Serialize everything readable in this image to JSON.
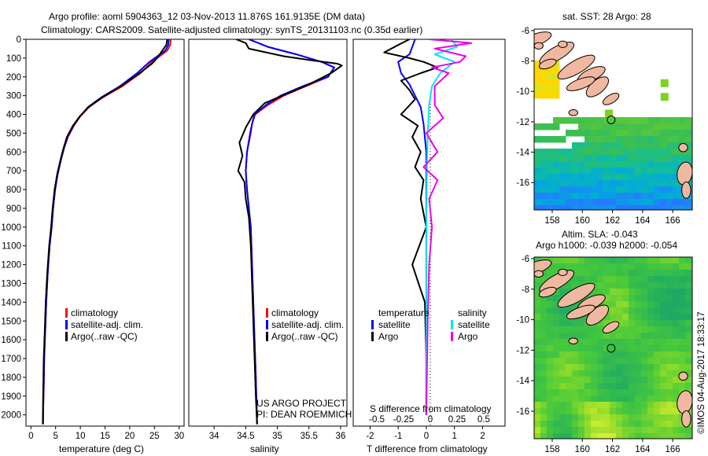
{
  "header": {
    "line1": "Argo profile: aoml 5904363_12 03-Nov-2013 11.876S 161.9135E (DM data)",
    "line2": "Climatology: CARS2009. Satellite-adjusted climatology: synTS_20131103.nc (0.35d earlier)"
  },
  "footer": {
    "credit": "©IMOS 04-Aug-2017 18:33:17",
    "project_line1": "US ARGO PROJECT",
    "project_line2": "PI: DEAN ROEMMICH"
  },
  "colors": {
    "climatology": "#ff0000",
    "satellite": "#0000ff",
    "argo": "#000000",
    "salinity_satellite": "#00e5ee",
    "salinity_argo": "#ee00ee"
  },
  "chart_data": [
    {
      "type": "line",
      "id": "temperature",
      "xlabel": "temperature (deg C)",
      "xlim": [
        -1,
        31
      ],
      "xticks": [
        0,
        5,
        10,
        15,
        20,
        25,
        30
      ],
      "ylim": [
        2060,
        0
      ],
      "yticks": [
        0,
        100,
        200,
        300,
        400,
        500,
        600,
        700,
        800,
        900,
        1000,
        1100,
        1200,
        1300,
        1400,
        1500,
        1600,
        1700,
        1800,
        1900,
        2000
      ],
      "legend": [
        "climatology",
        "satellite-adj. clim.",
        "Argo(..raw -QC)"
      ],
      "series": [
        {
          "name": "climatology",
          "x": [
            28.3,
            28.2,
            27.6,
            24.5,
            22.2,
            18.5,
            14.5,
            11.8,
            10.0,
            8.7,
            7.5,
            6.7,
            6.1,
            5.4,
            4.9,
            4.5,
            4.2,
            3.8,
            3.4,
            3.1,
            2.9,
            2.7,
            2.6,
            2.5,
            2.45
          ],
          "y": [
            0,
            30,
            60,
            120,
            180,
            250,
            310,
            360,
            410,
            460,
            520,
            580,
            640,
            720,
            800,
            900,
            1000,
            1100,
            1250,
            1400,
            1550,
            1700,
            1850,
            1950,
            2050
          ]
        },
        {
          "name": "satellite-adj. clim.",
          "x": [
            27.9,
            27.8,
            27.2,
            24.0,
            21.5,
            18.0,
            14.2,
            11.6,
            9.9,
            8.6,
            7.4,
            6.7,
            6.1,
            5.4,
            4.9,
            4.5,
            4.2,
            3.8,
            3.4,
            3.1,
            2.9,
            2.7,
            2.6,
            2.5,
            2.45
          ],
          "y": [
            0,
            30,
            60,
            120,
            180,
            250,
            310,
            360,
            410,
            460,
            520,
            580,
            640,
            720,
            800,
            900,
            1000,
            1100,
            1250,
            1400,
            1550,
            1700,
            1850,
            1950,
            2050
          ]
        },
        {
          "name": "Argo(..raw -QC)",
          "x": [
            27.6,
            27.4,
            26.6,
            25.5,
            24.5,
            22.0,
            18.2,
            14.4,
            11.7,
            9.9,
            8.5,
            7.3,
            6.6,
            6.0,
            5.3,
            4.8,
            4.4,
            4.1,
            3.7,
            3.3,
            3.0,
            2.8,
            2.6,
            2.5,
            2.4
          ],
          "y": [
            0,
            30,
            60,
            100,
            130,
            180,
            250,
            310,
            360,
            410,
            460,
            520,
            580,
            640,
            720,
            800,
            900,
            1000,
            1100,
            1250,
            1400,
            1550,
            1700,
            1850,
            2050
          ]
        }
      ]
    },
    {
      "type": "line",
      "id": "salinity",
      "xlabel": "salinity",
      "xlim": [
        33.6,
        36.1
      ],
      "xticks": [
        34,
        34.5,
        35,
        35.5,
        36
      ],
      "ylim": [
        2060,
        0
      ],
      "legend": [
        "climatology",
        "satellite-adj. clim.",
        "Argo(..raw -QC)"
      ],
      "series": [
        {
          "name": "climatology",
          "x": [
            34.55,
            34.85,
            35.3,
            35.7,
            35.9,
            35.8,
            35.45,
            35.1,
            34.85,
            34.65,
            34.6,
            34.58,
            34.52,
            34.5,
            34.52,
            34.55,
            34.58,
            34.6,
            34.62,
            34.64,
            34.66,
            34.68
          ],
          "y": [
            0,
            40,
            80,
            120,
            150,
            200,
            250,
            300,
            350,
            400,
            450,
            500,
            600,
            700,
            800,
            900,
            1000,
            1200,
            1400,
            1600,
            1800,
            2050
          ]
        },
        {
          "name": "satellite-adj. clim.",
          "x": [
            34.55,
            34.85,
            35.3,
            35.7,
            35.9,
            35.8,
            35.4,
            35.05,
            34.82,
            34.64,
            34.6,
            34.57,
            34.52,
            34.5,
            34.52,
            34.55,
            34.58,
            34.6,
            34.62,
            34.64,
            34.66,
            34.68
          ],
          "y": [
            0,
            40,
            80,
            120,
            150,
            200,
            250,
            300,
            350,
            400,
            450,
            500,
            600,
            700,
            800,
            900,
            1000,
            1200,
            1400,
            1600,
            1800,
            2050
          ]
        },
        {
          "name": "Argo(..raw -QC)",
          "x": [
            34.35,
            34.5,
            34.55,
            35.1,
            35.5,
            35.95,
            36.02,
            35.85,
            35.5,
            35.15,
            34.8,
            34.62,
            34.5,
            34.4,
            34.45,
            34.38,
            34.48,
            34.5,
            34.55,
            34.58,
            34.6,
            34.62,
            34.64,
            34.66,
            34.68
          ],
          "y": [
            0,
            20,
            50,
            90,
            110,
            130,
            140,
            180,
            240,
            290,
            340,
            400,
            470,
            550,
            620,
            700,
            760,
            850,
            950,
            1100,
            1300,
            1500,
            1700,
            1900,
            2050
          ]
        }
      ]
    },
    {
      "type": "line",
      "id": "difference",
      "xlabel": "T difference from climatology",
      "x2label": "S difference from climatology",
      "xlim": [
        -2.6,
        2.8
      ],
      "xticks": [
        -2,
        -1,
        0,
        1,
        2
      ],
      "x2ticks": [
        -0.5,
        -0.25,
        0,
        0.25,
        0.5
      ],
      "ylim": [
        2060,
        0
      ],
      "legend_header": [
        "temperature",
        "salinity"
      ],
      "legend": [
        "satellite",
        "Argo",
        "satellite",
        "Argo"
      ],
      "series": [
        {
          "name": "satellite",
          "x": [
            -0.4,
            -0.5,
            -0.6,
            -1.0,
            -0.9,
            -0.6,
            -0.4,
            -0.2,
            -0.1,
            0.0,
            0.0,
            0.0,
            0.0,
            0.0
          ],
          "y": [
            0,
            40,
            80,
            120,
            180,
            240,
            300,
            360,
            450,
            600,
            800,
            1200,
            1600,
            2000
          ]
        },
        {
          "name": "Argo",
          "x": [
            -0.6,
            -1.0,
            -1.5,
            -0.6,
            -0.1,
            0.4,
            -0.2,
            -0.9,
            -0.6,
            -0.4,
            -0.9,
            -0.3,
            -0.5,
            -0.2,
            -0.4,
            -0.1,
            -0.2,
            0.0,
            -0.5,
            -0.05,
            0.0,
            0.0
          ],
          "y": [
            0,
            30,
            70,
            100,
            120,
            150,
            180,
            220,
            270,
            320,
            400,
            460,
            520,
            600,
            680,
            750,
            850,
            1000,
            1200,
            1400,
            1700,
            2000
          ]
        },
        {
          "name": "satellite",
          "x": [
            0.9,
            1.1,
            0.3,
            1.0,
            0.5,
            0.2,
            0.1,
            0.05,
            0.02,
            0.0,
            0.0,
            0.0
          ],
          "y": [
            0,
            40,
            80,
            120,
            180,
            250,
            350,
            500,
            700,
            1000,
            1500,
            2000
          ]
        },
        {
          "name": "Argo",
          "x": [
            0.1,
            1.6,
            0.3,
            1.4,
            1.2,
            0.2,
            0.8,
            0.3,
            0.3,
            0.6,
            0.0,
            0.4,
            -0.1,
            0.4,
            0.1,
            0.2,
            0.1,
            0.05,
            0.0
          ],
          "y": [
            0,
            20,
            50,
            90,
            120,
            150,
            180,
            250,
            350,
            420,
            500,
            600,
            680,
            750,
            850,
            1000,
            1200,
            1500,
            2000
          ]
        }
      ]
    },
    {
      "type": "heatmap",
      "id": "sst-map",
      "title": "sat. SST: 28  Argo: 28",
      "xlim": [
        156.8,
        167.3
      ],
      "ylim": [
        -17.8,
        -5.9
      ],
      "xticks": [
        158,
        160,
        162,
        164,
        166
      ],
      "yticks": [
        -6,
        -8,
        -10,
        -12,
        -14,
        -16
      ]
    },
    {
      "type": "heatmap",
      "id": "sla-map",
      "title_line1": "Altim. SLA: -0.043",
      "title_line2": "Argo h1000: -0.039 h2000: -0.054",
      "xlim": [
        156.8,
        167.3
      ],
      "ylim": [
        -17.8,
        -5.9
      ],
      "xticks": [
        158,
        160,
        162,
        164,
        166
      ],
      "yticks": [
        -6,
        -8,
        -10,
        -12,
        -14,
        -16
      ]
    }
  ]
}
